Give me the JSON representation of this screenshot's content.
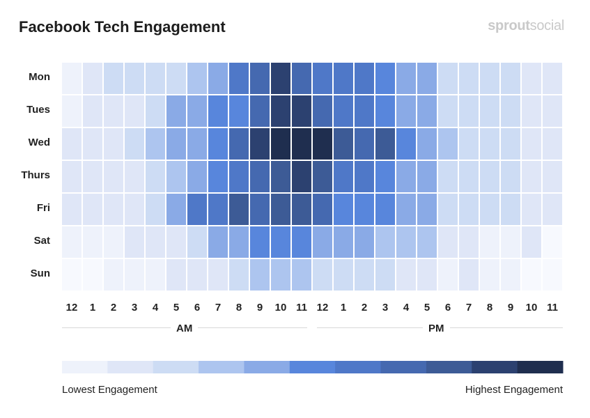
{
  "chart_data": {
    "type": "heatmap",
    "title": "Facebook Tech Engagement",
    "brand": "sproutsocial",
    "rows": [
      "Mon",
      "Tues",
      "Wed",
      "Thurs",
      "Fri",
      "Sat",
      "Sun"
    ],
    "columns": [
      "12",
      "1",
      "2",
      "3",
      "4",
      "5",
      "6",
      "7",
      "8",
      "9",
      "10",
      "11",
      "12",
      "1",
      "2",
      "3",
      "4",
      "5",
      "6",
      "7",
      "8",
      "9",
      "10",
      "11"
    ],
    "periods": [
      "AM",
      "PM"
    ],
    "values": [
      [
        1,
        2,
        3,
        3,
        3,
        3,
        4,
        5,
        7,
        8,
        10,
        8,
        7,
        7,
        7,
        6,
        5,
        5,
        3,
        3,
        3,
        3,
        2,
        2
      ],
      [
        1,
        2,
        2,
        2,
        3,
        5,
        5,
        6,
        6,
        8,
        10,
        10,
        8,
        7,
        7,
        6,
        5,
        5,
        3,
        3,
        3,
        3,
        2,
        2
      ],
      [
        2,
        2,
        2,
        3,
        4,
        5,
        5,
        6,
        8,
        10,
        11,
        11,
        11,
        9,
        8,
        9,
        6,
        5,
        4,
        3,
        3,
        3,
        2,
        2
      ],
      [
        2,
        2,
        2,
        2,
        3,
        4,
        5,
        6,
        7,
        8,
        9,
        10,
        9,
        7,
        7,
        6,
        5,
        5,
        3,
        3,
        3,
        3,
        2,
        2
      ],
      [
        2,
        2,
        2,
        2,
        3,
        5,
        7,
        7,
        9,
        8,
        9,
        9,
        8,
        6,
        6,
        6,
        5,
        5,
        3,
        3,
        3,
        3,
        2,
        2
      ],
      [
        1,
        1,
        1,
        2,
        2,
        2,
        3,
        5,
        5,
        6,
        6,
        6,
        5,
        5,
        5,
        4,
        4,
        4,
        2,
        2,
        1,
        1,
        2,
        0
      ],
      [
        0,
        0,
        1,
        1,
        1,
        2,
        2,
        2,
        3,
        4,
        4,
        4,
        3,
        3,
        3,
        3,
        2,
        2,
        1,
        2,
        1,
        1,
        0,
        0
      ]
    ],
    "value_range": [
      0,
      11
    ],
    "color_scale": [
      "#f7f9fe",
      "#eef2fb",
      "#dfe6f7",
      "#cddcf4",
      "#adc5ef",
      "#8aaae6",
      "#5886dc",
      "#4f78c8",
      "#4569b0",
      "#3d5b96",
      "#2c4170",
      "#1f2e4f"
    ],
    "legend": {
      "low_label": "Lowest Engagement",
      "high_label": "Highest Engagement",
      "steps": 11
    }
  }
}
